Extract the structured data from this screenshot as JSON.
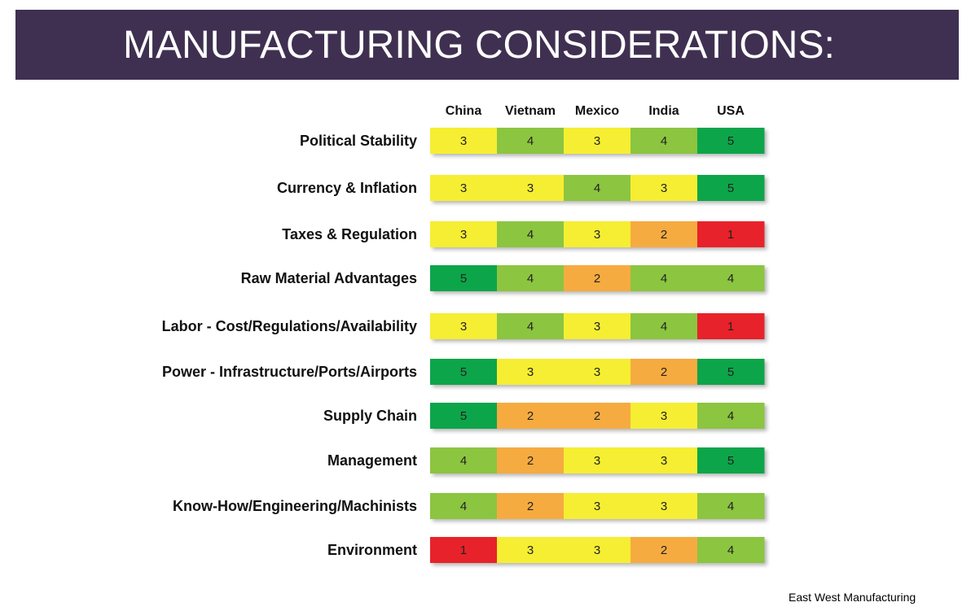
{
  "colors": {
    "title_bar": "#3f3051",
    "title_text": "#ffffff",
    "score_1": "#e8212a",
    "score_2": "#f6ab40",
    "score_3": "#f6ee32",
    "score_4": "#8cc540",
    "score_5": "#0da54a"
  },
  "header": {
    "title": "MANUFACTURING CONSIDERATIONS:"
  },
  "footer": {
    "source": "East West Manufacturing"
  },
  "chart_data": {
    "type": "heatmap",
    "title": "MANUFACTURING CONSIDERATIONS:",
    "columns": [
      "China",
      "Vietnam",
      "Mexico",
      "India",
      "USA"
    ],
    "rows": [
      "Political Stability",
      "Currency & Inflation",
      "Taxes & Regulation",
      "Raw Material Advantages",
      "Labor - Cost/Regulations/Availability",
      "Power - Infrastructure/Ports/Airports",
      "Supply Chain",
      "Management",
      "Know-How/Engineering/Machinists",
      "Environment"
    ],
    "values": [
      [
        3,
        4,
        3,
        4,
        5
      ],
      [
        3,
        3,
        4,
        3,
        5
      ],
      [
        3,
        4,
        3,
        2,
        1
      ],
      [
        5,
        4,
        2,
        4,
        4
      ],
      [
        3,
        4,
        3,
        4,
        1
      ],
      [
        5,
        3,
        3,
        2,
        5
      ],
      [
        5,
        2,
        2,
        3,
        4
      ],
      [
        4,
        2,
        3,
        3,
        5
      ],
      [
        4,
        2,
        3,
        3,
        4
      ],
      [
        1,
        3,
        3,
        2,
        4
      ]
    ],
    "legend": "none",
    "grid": false
  }
}
